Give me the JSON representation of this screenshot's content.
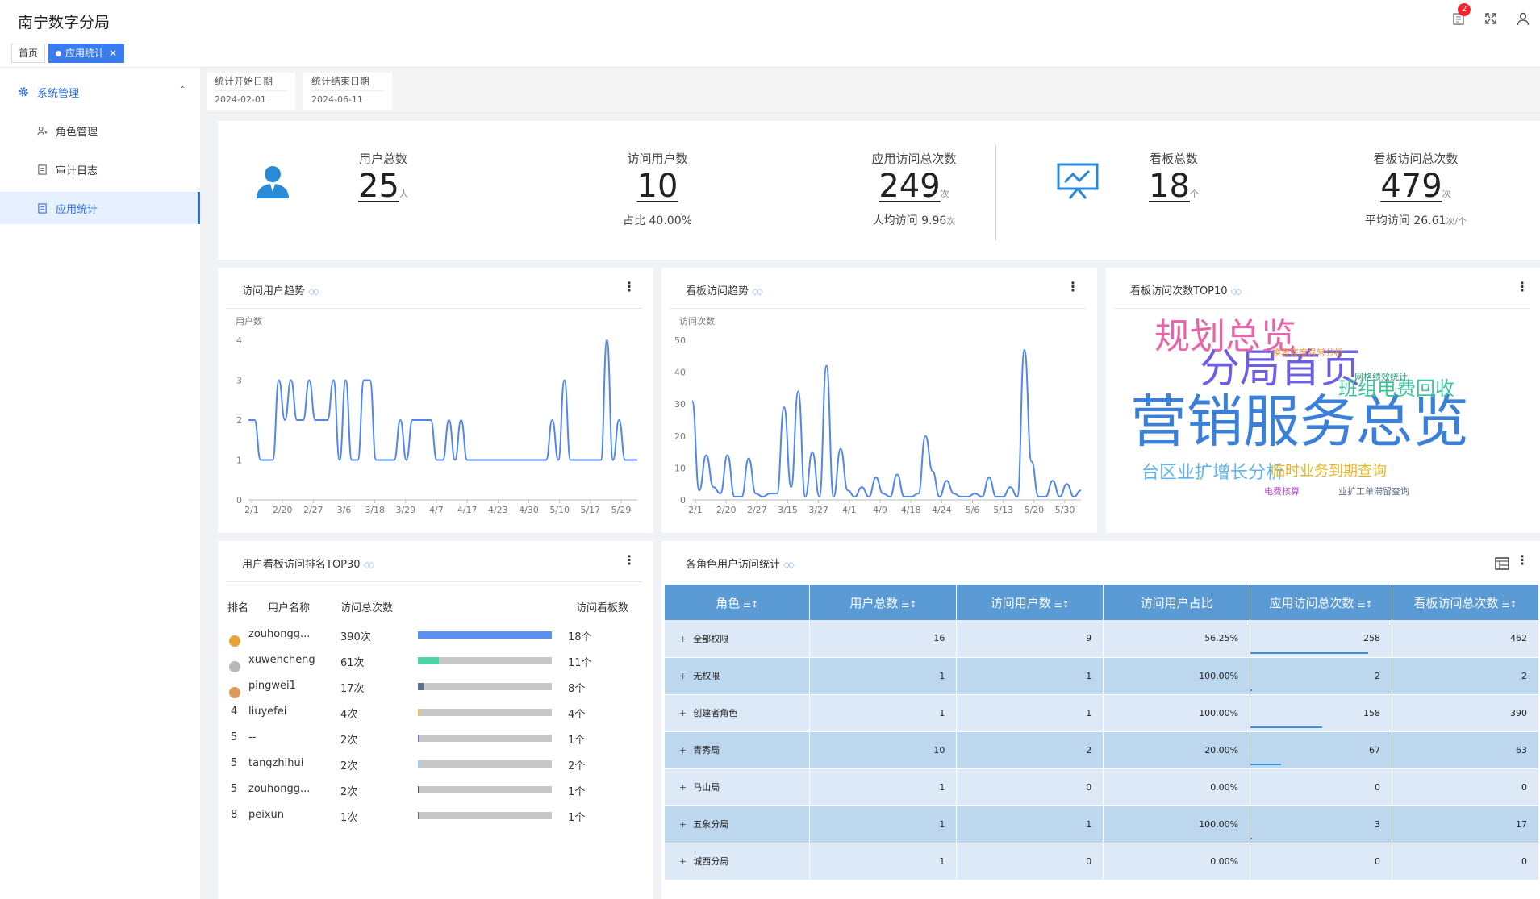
{
  "header": {
    "title": "南宁数字分局",
    "notification_count": "2"
  },
  "tabs": [
    {
      "label": "首页"
    },
    {
      "label": "应用统计",
      "close": "✕"
    }
  ],
  "sidebar": {
    "group": {
      "label": "系统管理",
      "caret": "⌃"
    },
    "items": [
      {
        "label": "角色管理"
      },
      {
        "label": "审计日志"
      },
      {
        "label": "应用统计"
      }
    ]
  },
  "filters": {
    "start": {
      "label": "统计开始日期",
      "value": "2024-02-01"
    },
    "end": {
      "label": "统计结束日期",
      "value": "2024-06-11"
    }
  },
  "stats": {
    "total_users": {
      "title": "用户总数",
      "value": "25",
      "unit": "人"
    },
    "visit_users": {
      "title": "访问用户数",
      "value": "10",
      "sub": "占比 40.00%"
    },
    "app_visits": {
      "title": "应用访问总次数",
      "value": "249",
      "unit": "次",
      "sub": "人均访问 9.96",
      "sub_unit": "次"
    },
    "total_boards": {
      "title": "看板总数",
      "value": "18",
      "unit": "个"
    },
    "board_visits": {
      "title": "看板访问总次数",
      "value": "479",
      "unit": "次",
      "sub": "平均访问 26.61",
      "sub_unit": "次/个"
    }
  },
  "cards": {
    "user_trend": {
      "title": "访问用户趋势"
    },
    "board_trend": {
      "title": "看板访问趋势"
    },
    "board_top10": {
      "title": "看板访问次数TOP10"
    },
    "rank_top30": {
      "title": "用户看板访问排名TOP30"
    },
    "role_stats": {
      "title": "各角色用户访问统计"
    }
  },
  "chart_data": [
    {
      "type": "line",
      "ylabel": "用户数",
      "ylim": [
        0,
        4
      ],
      "yticks": [
        "0",
        "1",
        "2",
        "3",
        "4"
      ],
      "x_tick_labels": [
        "2/1",
        "2/20",
        "2/27",
        "3/6",
        "3/18",
        "3/29",
        "4/7",
        "4/17",
        "4/23",
        "4/30",
        "5/10",
        "5/17",
        "5/29"
      ],
      "x": [
        "2/1",
        "2/4",
        "2/7",
        "2/10",
        "2/13",
        "2/16",
        "2/18",
        "2/20",
        "2/22",
        "2/24",
        "2/25",
        "2/27",
        "3/1",
        "3/3",
        "3/5",
        "3/6",
        "3/8",
        "3/10",
        "3/12",
        "3/14",
        "3/16",
        "3/18",
        "3/20",
        "3/22",
        "3/24",
        "3/26",
        "3/28",
        "3/29",
        "3/31",
        "4/2",
        "4/4",
        "4/6",
        "4/7",
        "4/9",
        "4/11",
        "4/13",
        "4/15",
        "4/17",
        "4/19",
        "4/21",
        "4/23",
        "4/25",
        "4/27",
        "4/30",
        "5/2",
        "5/4",
        "5/6",
        "5/8",
        "5/10",
        "5/12",
        "5/14",
        "5/16",
        "5/17",
        "5/19",
        "5/21",
        "5/23",
        "5/25",
        "5/27",
        "5/29",
        "5/31",
        "6/2",
        "6/4",
        "6/6",
        "6/8",
        "6/11"
      ],
      "values": [
        2,
        2,
        1,
        1,
        1,
        3,
        2,
        3,
        2,
        2,
        3,
        2,
        2,
        2,
        3,
        1,
        3,
        1,
        1,
        3,
        3,
        1,
        1,
        1,
        1,
        2,
        1,
        2,
        2,
        2,
        2,
        1,
        1,
        2,
        1,
        2,
        1,
        1,
        1,
        1,
        1,
        1,
        1,
        1,
        1,
        1,
        1,
        1,
        1,
        1,
        2,
        1,
        3,
        1,
        1,
        1,
        1,
        1,
        1,
        4,
        1,
        2,
        1,
        1,
        1
      ]
    },
    {
      "type": "line",
      "ylabel": "访问次数",
      "ylim": [
        0,
        50
      ],
      "yticks": [
        "0",
        "10",
        "20",
        "30",
        "40",
        "50"
      ],
      "x_tick_labels": [
        "2/1",
        "2/20",
        "2/27",
        "3/15",
        "3/27",
        "4/1",
        "4/9",
        "4/18",
        "4/24",
        "5/6",
        "5/13",
        "5/20",
        "5/30"
      ],
      "x": [
        "2/1",
        "2/3",
        "2/5",
        "2/8",
        "2/11",
        "2/14",
        "2/17",
        "2/20",
        "2/22",
        "2/24",
        "2/26",
        "2/27",
        "3/1",
        "3/3",
        "3/6",
        "3/8",
        "3/10",
        "3/13",
        "3/15",
        "3/18",
        "3/20",
        "3/22",
        "3/24",
        "3/27",
        "3/29",
        "4/1",
        "4/3",
        "4/5",
        "4/7",
        "4/9",
        "4/11",
        "4/13",
        "4/16",
        "4/18",
        "4/20",
        "4/22",
        "4/24",
        "4/26",
        "4/28",
        "5/1",
        "5/3",
        "5/6",
        "5/8",
        "5/10",
        "5/13",
        "5/15",
        "5/17",
        "5/20",
        "5/22",
        "5/24",
        "5/27",
        "5/30",
        "6/2",
        "6/5",
        "6/8",
        "6/11"
      ],
      "values": [
        31,
        3,
        14,
        4,
        2,
        14,
        1,
        1,
        13,
        2,
        1,
        2,
        2,
        29,
        4,
        34,
        1,
        15,
        1,
        42,
        1,
        16,
        3,
        1,
        4,
        1,
        7,
        2,
        1,
        8,
        1,
        1,
        2,
        20,
        9,
        1,
        6,
        2,
        1,
        1,
        2,
        1,
        7,
        1,
        1,
        4,
        1,
        47,
        12,
        1,
        1,
        6,
        1,
        5,
        1,
        3
      ]
    }
  ],
  "wordcloud": [
    {
      "text": "营销服务总览",
      "color": "#3a7fd8"
    },
    {
      "text": "分局首页",
      "color": "#6d5fe3"
    },
    {
      "text": "规划总览",
      "color": "#e765a8"
    },
    {
      "text": "班组电费回收",
      "color": "#3ec49a"
    },
    {
      "text": "台区业扩增长分析",
      "color": "#5fb6ee"
    },
    {
      "text": "临时业务到期查询",
      "color": "#e8b520"
    },
    {
      "text": "换表底度异常分析",
      "color": "#f08a3c"
    },
    {
      "text": "网格绩效统计",
      "color": "#2f9e7e"
    },
    {
      "text": "业扩工单滞留查询",
      "color": "#5b6b8a"
    },
    {
      "text": "电费核算",
      "color": "#b04bc8"
    }
  ],
  "ranking": {
    "headers": {
      "rank": "排名",
      "name": "用户名称",
      "visits": "访问总次数",
      "boards": "访问看板数"
    },
    "rows": [
      {
        "rank": "",
        "medal": "gold",
        "name": "zouhongg...",
        "visits": "390次",
        "ratio": 1.0,
        "color": "#5b8ff0",
        "boards": "18个"
      },
      {
        "rank": "",
        "medal": "silver",
        "name": "xuwencheng",
        "visits": "61次",
        "ratio": 0.156,
        "color": "#4fd3a3",
        "boards": "11个"
      },
      {
        "rank": "",
        "medal": "bronze",
        "name": "pingwei1",
        "visits": "17次",
        "ratio": 0.044,
        "color": "#5a6e90",
        "boards": "8个"
      },
      {
        "rank": "4",
        "medal": "",
        "name": "liuyefei",
        "visits": "4次",
        "ratio": 0.01,
        "color": "#f0c030",
        "boards": "4个"
      },
      {
        "rank": "5",
        "medal": "",
        "name": "--",
        "visits": "2次",
        "ratio": 0.005,
        "color": "#7e6bd6",
        "boards": "1个"
      },
      {
        "rank": "5",
        "medal": "",
        "name": "tangzhihui",
        "visits": "2次",
        "ratio": 0.005,
        "color": "#8fd0ef",
        "boards": "2个"
      },
      {
        "rank": "5",
        "medal": "",
        "name": "zouhongg...",
        "visits": "2次",
        "ratio": 0.005,
        "color": "#555555",
        "boards": "1个"
      },
      {
        "rank": "8",
        "medal": "",
        "name": "peixun",
        "visits": "1次",
        "ratio": 0.003,
        "color": "#666666",
        "boards": "1个"
      }
    ]
  },
  "role_table": {
    "headers": [
      "角色",
      "用户总数",
      "访问用户数",
      "访问用户占比",
      "应用访问总次数",
      "看板访问总次数"
    ],
    "sortable": [
      true,
      true,
      true,
      false,
      true,
      true
    ],
    "rows": [
      {
        "role": "全部权限",
        "users": "16",
        "visit_users": "9",
        "ratio": "56.25%",
        "app_visits": "258",
        "app_ratio": 1.0,
        "board_visits": "462"
      },
      {
        "role": "无权限",
        "users": "1",
        "visit_users": "1",
        "ratio": "100.00%",
        "app_visits": "2",
        "app_ratio": 0.01,
        "board_visits": "2"
      },
      {
        "role": "创建者角色",
        "users": "1",
        "visit_users": "1",
        "ratio": "100.00%",
        "app_visits": "158",
        "app_ratio": 0.61,
        "board_visits": "390"
      },
      {
        "role": "青秀局",
        "users": "10",
        "visit_users": "2",
        "ratio": "20.00%",
        "app_visits": "67",
        "app_ratio": 0.26,
        "board_visits": "63"
      },
      {
        "role": "马山局",
        "users": "1",
        "visit_users": "0",
        "ratio": "0.00%",
        "app_visits": "0",
        "app_ratio": 0,
        "board_visits": "0"
      },
      {
        "role": "五象分局",
        "users": "1",
        "visit_users": "1",
        "ratio": "100.00%",
        "app_visits": "3",
        "app_ratio": 0.01,
        "board_visits": "17"
      },
      {
        "role": "城西分局",
        "users": "1",
        "visit_users": "0",
        "ratio": "0.00%",
        "app_visits": "0",
        "app_ratio": 0,
        "board_visits": "0"
      }
    ]
  },
  "colors": {
    "accent": "#3a7cf0",
    "line": "#4f86f0",
    "table_header": "#5b9bd5"
  }
}
